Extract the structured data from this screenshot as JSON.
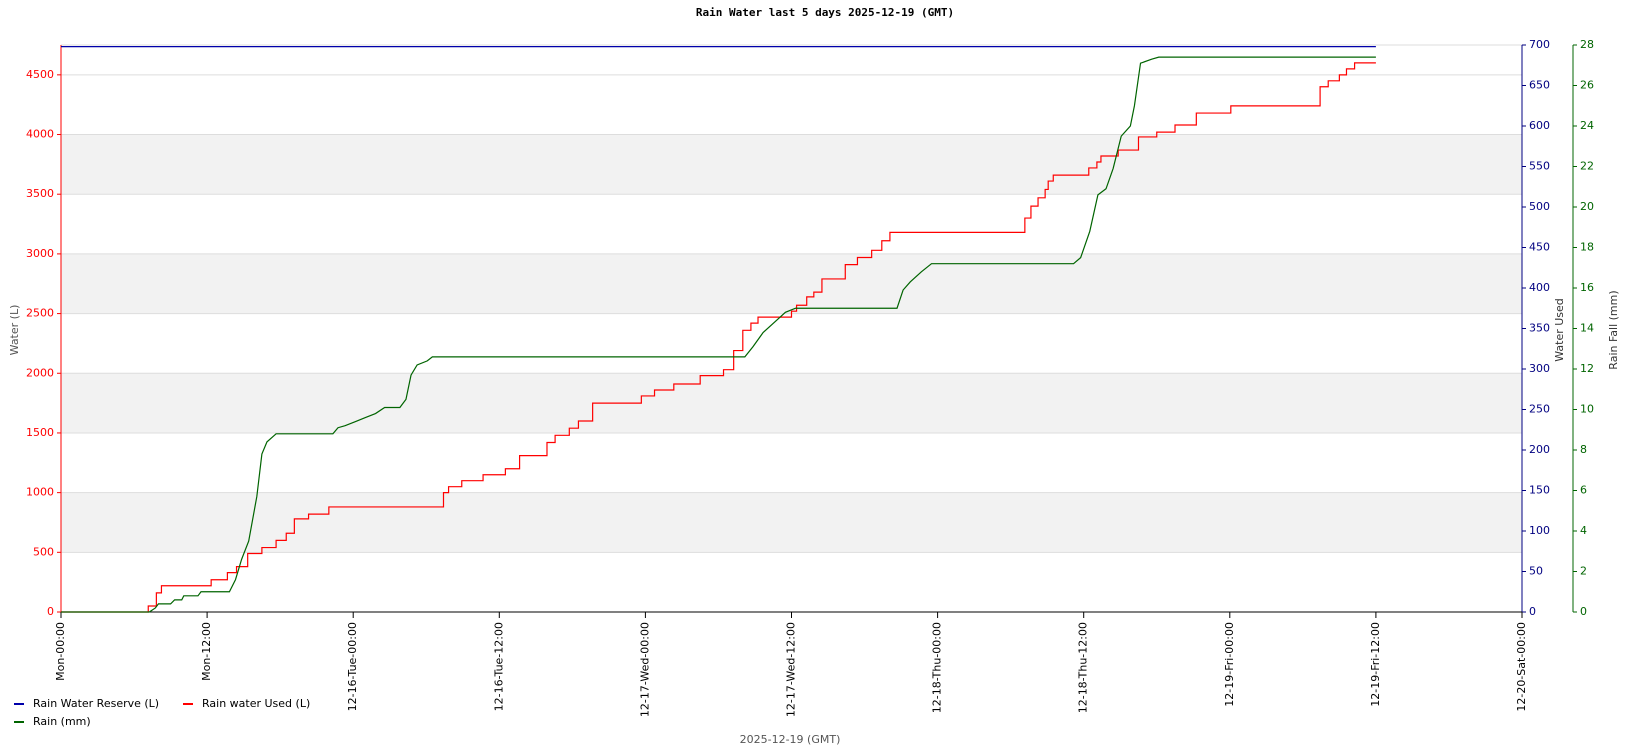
{
  "chart_data": {
    "type": "line",
    "title": "Rain Water last 5     days 2025-12-19 (GMT)",
    "x_label": "2025-12-19 (GMT)",
    "y_label": "Water (L)",
    "y2_label": "Water Used",
    "y3_label": "Rain Fall (mm)",
    "xlim": [
      "12-15 00:00",
      "12-20 00:00"
    ],
    "xticks": [
      {
        "value": "12-15 00:00",
        "label": "Mon-00:00"
      },
      {
        "value": "12-15 12:00",
        "label": "Mon-12:00"
      },
      {
        "value": "12-16 00:00",
        "label": "12-16-Tue-00:00"
      },
      {
        "value": "12-16 12:00",
        "label": "12-16-Tue-12:00"
      },
      {
        "value": "12-17 00:00",
        "label": "12-17-Wed-00:00"
      },
      {
        "value": "12-17 12:00",
        "label": "12-17-Wed-12:00"
      },
      {
        "value": "12-18 00:00",
        "label": "12-18-Thu-00:00"
      },
      {
        "value": "12-18 12:00",
        "label": "12-18-Thu-12:00"
      },
      {
        "value": "12-19 00:00",
        "label": "12-19-Fri-00:00"
      },
      {
        "value": "12-19 12:00",
        "label": "12-19-Fri-12:00"
      },
      {
        "value": "12-20 00:00",
        "label": "12-20-Sat-00:00"
      }
    ],
    "ylim": [
      0,
      4750
    ],
    "yticks": [
      0,
      500,
      1000,
      1500,
      2000,
      2500,
      3000,
      3500,
      4000,
      4500
    ],
    "y_color": "#ff0000",
    "y2lim": [
      0,
      700
    ],
    "y2ticks": [
      0,
      50,
      100,
      150,
      200,
      250,
      300,
      350,
      400,
      450,
      500,
      550,
      600,
      650,
      700
    ],
    "y2_color": "#000080",
    "y3lim": [
      0,
      28
    ],
    "y3ticks": [
      0,
      2,
      4,
      6,
      8,
      10,
      12,
      14,
      16,
      18,
      20,
      22,
      24,
      26,
      28
    ],
    "y3_color": "#006400",
    "grid": true,
    "legend": "bottom-left",
    "series": [
      {
        "name": "Rain Water Reserve (L)",
        "color": "#0000aa",
        "axis": "y2",
        "step": false,
        "x": [
          "12-15 00:00",
          "12-16 12:00",
          "12-18 00:00",
          "12-19 12:00"
        ],
        "values": [
          698,
          698,
          698,
          698
        ]
      },
      {
        "name": "Rain water Used (L)",
        "color": "#ff0000",
        "axis": "y",
        "step": true,
        "x": [
          "12-15 00:00",
          "12-15 07:10",
          "12-15 07:50",
          "12-15 08:15",
          "12-15 12:20",
          "12-15 13:40",
          "12-15 14:25",
          "12-15 15:20",
          "12-15 16:30",
          "12-15 17:40",
          "12-15 18:30",
          "12-15 19:10",
          "12-15 20:20",
          "12-15 22:00",
          "12-16 07:25",
          "12-16 07:50",
          "12-16 08:55",
          "12-16 10:40",
          "12-16 12:30",
          "12-16 13:40",
          "12-16 15:55",
          "12-16 16:35",
          "12-16 17:45",
          "12-16 18:30",
          "12-16 19:40",
          "12-16 23:40",
          "12-17 00:45",
          "12-17 02:20",
          "12-17 04:30",
          "12-17 06:25",
          "12-17 07:15",
          "12-17 08:00",
          "12-17 08:40",
          "12-17 09:15",
          "12-17 12:00",
          "12-17 12:25",
          "12-17 13:15",
          "12-17 13:50",
          "12-17 14:30",
          "12-17 16:25",
          "12-17 17:25",
          "12-17 18:35",
          "12-17 19:25",
          "12-17 20:05",
          "12-18 07:10",
          "12-18 07:40",
          "12-18 08:15",
          "12-18 08:50",
          "12-18 09:05",
          "12-18 09:30",
          "12-18 12:25",
          "12-18 13:05",
          "12-18 13:25",
          "12-18 14:50",
          "12-18 16:30",
          "12-18 18:00",
          "12-18 19:30",
          "12-18 21:15",
          "12-19 00:05",
          "12-19 07:25",
          "12-19 08:05",
          "12-19 09:00",
          "12-19 09:35",
          "12-19 10:15",
          "12-19 12:00"
        ],
        "values": [
          0,
          50,
          160,
          220,
          270,
          330,
          380,
          490,
          540,
          600,
          660,
          780,
          820,
          880,
          1000,
          1050,
          1100,
          1150,
          1200,
          1310,
          1420,
          1480,
          1540,
          1600,
          1750,
          1810,
          1860,
          1910,
          1980,
          2030,
          2190,
          2360,
          2420,
          2470,
          2520,
          2570,
          2640,
          2680,
          2790,
          2910,
          2970,
          3030,
          3110,
          3180,
          3300,
          3400,
          3470,
          3540,
          3610,
          3660,
          3720,
          3770,
          3820,
          3870,
          3980,
          4020,
          4080,
          4180,
          4240,
          4400,
          4450,
          4500,
          4550,
          4600,
          4600
        ]
      },
      {
        "name": "Rain (mm)",
        "color": "#006400",
        "axis": "y3",
        "step": false,
        "x": [
          "12-15 00:00",
          "12-15 07:15",
          "12-15 07:45",
          "12-15 08:00",
          "12-15 09:00",
          "12-15 09:20",
          "12-15 09:55",
          "12-15 10:05",
          "12-15 11:15",
          "12-15 11:30",
          "12-15 13:50",
          "12-15 14:20",
          "12-15 14:50",
          "12-15 15:25",
          "12-15 16:05",
          "12-15 16:30",
          "12-15 16:55",
          "12-15 17:40",
          "12-15 22:20",
          "12-15 22:45",
          "12-15 23:20",
          "12-16 00:10",
          "12-16 01:00",
          "12-16 01:50",
          "12-16 02:35",
          "12-16 03:50",
          "12-16 04:20",
          "12-16 04:45",
          "12-16 05:15",
          "12-16 06:05",
          "12-16 06:30",
          "12-17 08:10",
          "12-17 08:50",
          "12-17 09:40",
          "12-17 10:35",
          "12-17 11:30",
          "12-17 12:20",
          "12-17 20:40",
          "12-17 21:10",
          "12-17 21:45",
          "12-17 22:40",
          "12-17 23:30",
          "12-18 00:00",
          "12-18 11:10",
          "12-18 11:45",
          "12-18 12:30",
          "12-18 13:10",
          "12-18 13:50",
          "12-18 14:25",
          "12-18 15:05",
          "12-18 15:50",
          "12-18 16:10",
          "12-18 16:40",
          "12-18 17:35",
          "12-18 18:10",
          "12-19 12:00"
        ],
        "values": [
          0,
          0,
          0.2,
          0.4,
          0.4,
          0.6,
          0.6,
          0.8,
          0.8,
          1.0,
          1.0,
          1.6,
          2.6,
          3.5,
          5.7,
          7.8,
          8.4,
          8.8,
          8.8,
          9.1,
          9.2,
          9.4,
          9.6,
          9.8,
          10.1,
          10.1,
          10.5,
          11.7,
          12.2,
          12.4,
          12.6,
          12.6,
          13.1,
          13.8,
          14.3,
          14.8,
          15.0,
          15.0,
          15.9,
          16.3,
          16.8,
          17.2,
          17.2,
          17.2,
          17.5,
          18.8,
          20.6,
          20.9,
          21.9,
          23.5,
          24.0,
          25.0,
          27.1,
          27.3,
          27.4,
          27.4
        ]
      }
    ]
  }
}
